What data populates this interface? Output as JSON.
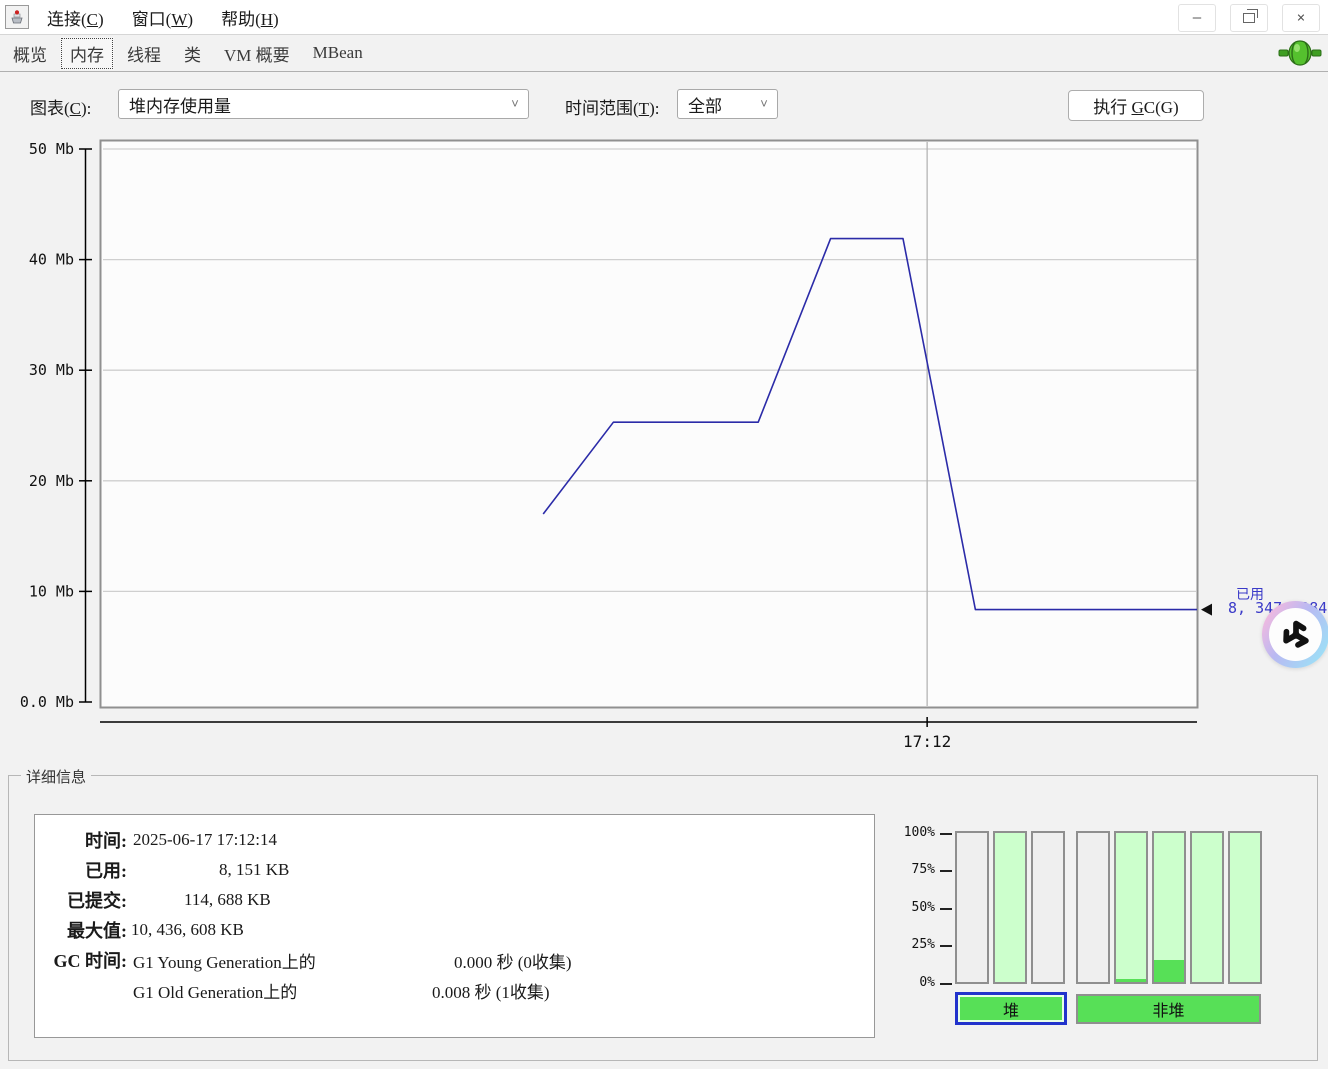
{
  "window": {
    "buttons": [
      {
        "name": "minimize",
        "glyph": "–"
      },
      {
        "name": "restore",
        "glyph": ""
      },
      {
        "name": "close",
        "glyph": "×"
      }
    ]
  },
  "menu": {
    "items": [
      {
        "label": "连接(C)",
        "mnemonic": "C"
      },
      {
        "label": "窗口(W)",
        "mnemonic": "W"
      },
      {
        "label": "帮助(H)",
        "mnemonic": "H"
      }
    ]
  },
  "tabs": {
    "items": [
      {
        "label": "概览",
        "selected": false
      },
      {
        "label": "内存",
        "selected": true
      },
      {
        "label": "线程",
        "selected": false
      },
      {
        "label": "类",
        "selected": false
      },
      {
        "label": "VM 概要",
        "selected": false
      },
      {
        "label": "MBean",
        "selected": false
      }
    ],
    "connection_icon": "green-plug-connected"
  },
  "controls": {
    "chart_label": "图表(C):",
    "chart_mnemonic": "C",
    "chart_value": "堆内存使用量",
    "range_label": "时间范围(T):",
    "range_mnemonic": "T",
    "range_value": "全部",
    "gc_button": "执行 GC(G)",
    "gc_mnemonic": "G"
  },
  "chart_data": {
    "type": "line",
    "title": "堆内存使用量",
    "ylabel": "Mb",
    "ylim": [
      0,
      50
    ],
    "grid": true,
    "yticks": [
      {
        "v": 0,
        "label": "0.0 Mb"
      },
      {
        "v": 10,
        "label": "10 Mb"
      },
      {
        "v": 20,
        "label": "20 Mb"
      },
      {
        "v": 30,
        "label": "30 Mb"
      },
      {
        "v": 40,
        "label": "40 Mb"
      },
      {
        "v": 50,
        "label": "50 Mb"
      }
    ],
    "xticks": [
      {
        "t": 0.754,
        "label": "17:12"
      }
    ],
    "series": [
      {
        "name": "已用",
        "color": "#2b2ba8",
        "points": [
          {
            "t": 0.404,
            "v": 17.0
          },
          {
            "t": 0.468,
            "v": 25.3
          },
          {
            "t": 0.6,
            "v": 25.3
          },
          {
            "t": 0.666,
            "v": 41.9
          },
          {
            "t": 0.732,
            "v": 41.9
          },
          {
            "t": 0.798,
            "v": 8.35
          },
          {
            "t": 1.0,
            "v": 8.35
          }
        ]
      }
    ],
    "annotation": {
      "label": "已用",
      "value": "8, 347, 284"
    }
  },
  "details": {
    "title": "详细信息",
    "rows": [
      {
        "label": "时间:",
        "value": "2025-06-17 17:12:14"
      },
      {
        "label": "已用:",
        "value": "8, 151 KB"
      },
      {
        "label": "已提交:",
        "value": "114, 688 KB"
      },
      {
        "label": "最大值:",
        "value": "10, 436, 608 KB"
      },
      {
        "label": "GC 时间:",
        "value": "G1 Young Generation上的",
        "value2": "0.000 秒 (0收集)"
      },
      {
        "label": "",
        "value": "G1 Old Generation上的",
        "value2": "0.008 秒 (1收集)"
      }
    ]
  },
  "gauges": {
    "ticks": [
      "100%",
      "75%",
      "50%",
      "25%",
      "0%"
    ],
    "heap": {
      "button": "堆",
      "selected": true,
      "bars": [
        {
          "committed": 0,
          "used": 0
        },
        {
          "committed": 100,
          "used": 0
        },
        {
          "committed": 0,
          "used": 0
        }
      ]
    },
    "nonheap": {
      "button": "非堆",
      "selected": false,
      "bars": [
        {
          "committed": 0,
          "used": 0
        },
        {
          "committed": 100,
          "used": 2
        },
        {
          "committed": 100,
          "used": 15
        },
        {
          "committed": 100,
          "used": 0
        },
        {
          "committed": 100,
          "used": 0
        }
      ]
    }
  },
  "colors": {
    "line_blue": "#2b2ba8",
    "annotation_blue": "#3a3ac8",
    "green_bright": "#57e057",
    "green_light": "#ccffcc",
    "selected_border_blue": "#2233cc",
    "grid_gray": "#cfcfcf"
  }
}
